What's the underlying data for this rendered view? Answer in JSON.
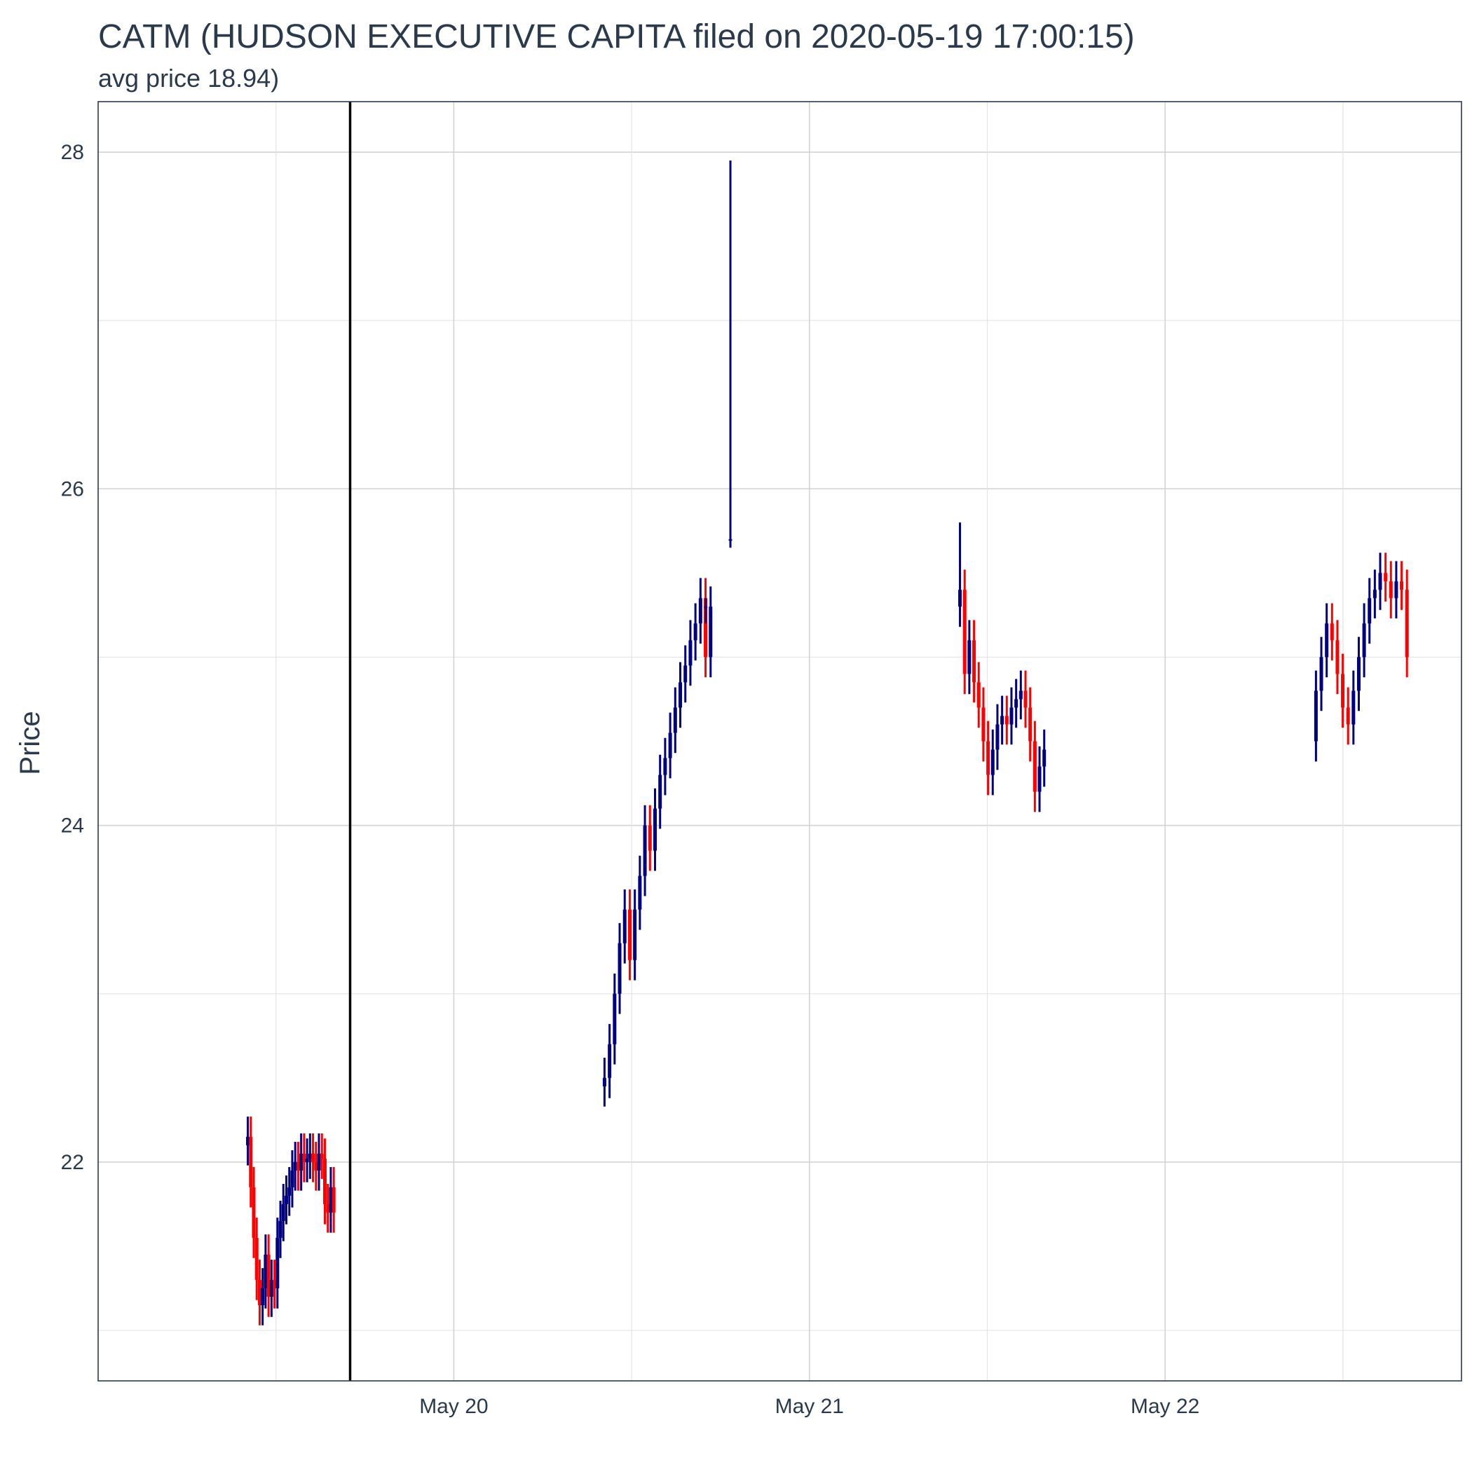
{
  "chart_data": {
    "type": "candlestick",
    "title": "CATM (HUDSON EXECUTIVE CAPITA filed on 2020-05-19 17:00:15)",
    "subtitle": "avg price 18.94)",
    "xlabel": "",
    "ylabel": "Price",
    "ylim": [
      20.7,
      28.3
    ],
    "xlim": [
      "2020-05-19 00:00",
      "2020-05-22 20:00"
    ],
    "grid": true,
    "y_ticks": [
      22,
      24,
      26,
      28
    ],
    "x_ticks": [
      {
        "label": "May 20",
        "time": "2020-05-20 00:00"
      },
      {
        "label": "May 21",
        "time": "2020-05-21 00:00"
      },
      {
        "label": "May 22",
        "time": "2020-05-22 00:00"
      }
    ],
    "filing_marker": {
      "time": "2020-05-19 17:00:15"
    },
    "colors": {
      "up": "#000080",
      "down": "#ff0000",
      "marker": "#000000",
      "frame": "#2b3a4a"
    },
    "sessions": [
      {
        "start": "2020-05-19 10:00",
        "end": "2020-05-19 16:00",
        "closes": [
          22.15,
          21.85,
          21.55,
          21.3,
          21.15,
          21.25,
          21.45,
          21.2,
          21.3,
          21.25,
          21.55,
          21.65,
          21.75,
          21.8,
          21.85,
          21.95,
          22.0,
          21.95,
          22.05,
          22.0,
          22.02,
          22.05,
          22.0,
          21.95,
          22.05,
          22.02,
          21.75,
          21.7,
          21.85,
          21.7
        ]
      },
      {
        "start": "2020-05-20 10:00",
        "end": "2020-05-20 17:30",
        "closes": [
          22.5,
          22.7,
          23.0,
          23.3,
          23.5,
          23.2,
          23.5,
          23.7,
          24.0,
          23.85,
          24.1,
          24.3,
          24.4,
          24.55,
          24.7,
          24.85,
          24.95,
          25.1,
          25.2,
          25.35,
          25.0,
          25.3
        ],
        "extra_bars": [
          {
            "time": "2020-05-20 17:00",
            "open": 25.3,
            "close": 25.3,
            "high": 25.35,
            "low": 25.2
          },
          {
            "time": "2020-05-20 18:40",
            "open": 25.7,
            "close": 25.7,
            "high": 27.95,
            "low": 25.65
          }
        ]
      },
      {
        "start": "2020-05-21 10:00",
        "end": "2020-05-21 16:00",
        "closes": [
          25.4,
          24.9,
          25.1,
          24.85,
          24.7,
          24.5,
          24.3,
          24.45,
          24.6,
          24.65,
          24.6,
          24.7,
          24.75,
          24.8,
          24.7,
          24.5,
          24.2,
          24.35,
          24.45
        ],
        "first_open": 25.3,
        "spike_high": 25.8
      },
      {
        "start": "2020-05-22 10:00",
        "end": "2020-05-22 16:30",
        "closes": [
          24.8,
          25.0,
          25.2,
          25.1,
          24.9,
          24.7,
          24.6,
          24.8,
          25.0,
          25.2,
          25.35,
          25.4,
          25.5,
          25.45,
          25.35,
          25.45,
          25.4,
          25.0
        ],
        "first_open": 24.5
      }
    ]
  }
}
